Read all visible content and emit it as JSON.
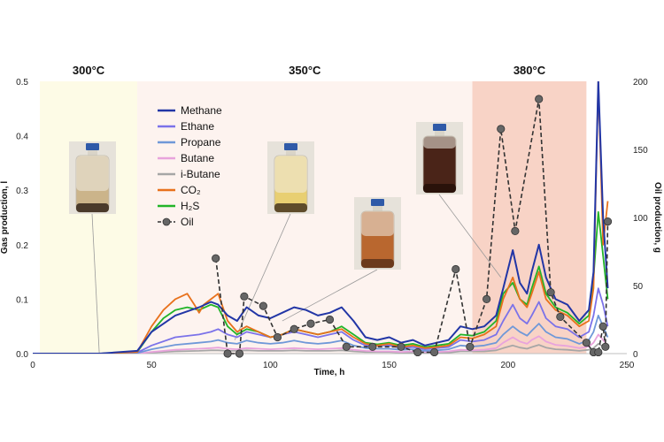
{
  "chart_data": {
    "type": "line",
    "xlabel": "Time, h",
    "ylabel": "Gas production, l",
    "y2label": "Oil production, g",
    "xlim": [
      0,
      250
    ],
    "ylim": [
      0,
      0.5
    ],
    "y2lim": [
      0,
      200
    ],
    "x_ticks": [
      "0",
      "50",
      "100",
      "150",
      "200",
      "250"
    ],
    "y_ticks": [
      "0.0",
      "0.1",
      "0.2",
      "0.3",
      "0.4",
      "0.5"
    ],
    "y2_ticks": [
      "0",
      "50",
      "100",
      "150",
      "200"
    ],
    "regions": [
      {
        "label": "300°C",
        "x": [
          3,
          44
        ],
        "color": "#fdfbe6"
      },
      {
        "label": "350°C",
        "x": [
          44,
          185
        ],
        "color": "#fdf3ef"
      },
      {
        "label": "380°C",
        "x": [
          185,
          233
        ],
        "color": "#f8d3c6"
      }
    ],
    "legend_position": "upper-left",
    "series": [
      {
        "name": "Methane",
        "color": "#2236a6",
        "x": [
          0,
          28,
          44,
          50,
          60,
          70,
          75,
          78,
          82,
          86,
          90,
          95,
          100,
          105,
          110,
          115,
          120,
          125,
          130,
          135,
          140,
          145,
          150,
          155,
          160,
          165,
          170,
          175,
          180,
          185,
          190,
          195,
          198,
          202,
          205,
          208,
          210,
          213,
          216,
          220,
          225,
          230,
          234,
          236,
          238,
          240,
          242
        ],
        "y": [
          0,
          0,
          0.005,
          0.04,
          0.07,
          0.085,
          0.095,
          0.09,
          0.07,
          0.06,
          0.085,
          0.07,
          0.065,
          0.075,
          0.085,
          0.08,
          0.07,
          0.075,
          0.085,
          0.06,
          0.03,
          0.025,
          0.03,
          0.02,
          0.025,
          0.015,
          0.02,
          0.025,
          0.05,
          0.045,
          0.05,
          0.07,
          0.12,
          0.19,
          0.13,
          0.11,
          0.15,
          0.2,
          0.14,
          0.1,
          0.09,
          0.06,
          0.08,
          0.15,
          0.5,
          0.25,
          0.12
        ]
      },
      {
        "name": "Ethane",
        "color": "#7b72e9",
        "x": [
          0,
          28,
          44,
          50,
          60,
          70,
          75,
          78,
          82,
          86,
          90,
          95,
          100,
          105,
          110,
          115,
          120,
          125,
          130,
          135,
          140,
          145,
          150,
          155,
          160,
          165,
          170,
          175,
          180,
          185,
          190,
          195,
          198,
          202,
          205,
          208,
          210,
          213,
          216,
          220,
          225,
          230,
          234,
          236,
          238,
          240,
          242
        ],
        "y": [
          0,
          0,
          0.002,
          0.015,
          0.03,
          0.035,
          0.04,
          0.045,
          0.035,
          0.03,
          0.04,
          0.035,
          0.03,
          0.035,
          0.04,
          0.035,
          0.03,
          0.035,
          0.04,
          0.025,
          0.015,
          0.015,
          0.015,
          0.01,
          0.012,
          0.008,
          0.01,
          0.012,
          0.025,
          0.022,
          0.025,
          0.035,
          0.06,
          0.09,
          0.065,
          0.055,
          0.07,
          0.095,
          0.065,
          0.05,
          0.045,
          0.03,
          0.04,
          0.07,
          0.12,
          0.09,
          0.05
        ]
      },
      {
        "name": "Propane",
        "color": "#6f98d8",
        "x": [
          0,
          28,
          44,
          50,
          60,
          70,
          75,
          78,
          82,
          86,
          90,
          95,
          100,
          105,
          110,
          115,
          120,
          125,
          130,
          135,
          140,
          145,
          150,
          155,
          160,
          165,
          170,
          175,
          180,
          185,
          190,
          195,
          198,
          202,
          205,
          208,
          210,
          213,
          216,
          220,
          225,
          230,
          234,
          236,
          238,
          240,
          242
        ],
        "y": [
          0,
          0,
          0.001,
          0.008,
          0.016,
          0.02,
          0.022,
          0.025,
          0.02,
          0.018,
          0.024,
          0.02,
          0.018,
          0.02,
          0.024,
          0.02,
          0.018,
          0.02,
          0.024,
          0.015,
          0.01,
          0.009,
          0.009,
          0.007,
          0.008,
          0.005,
          0.006,
          0.008,
          0.015,
          0.013,
          0.015,
          0.02,
          0.035,
          0.05,
          0.04,
          0.033,
          0.042,
          0.055,
          0.04,
          0.03,
          0.027,
          0.018,
          0.025,
          0.04,
          0.07,
          0.05,
          0.03
        ]
      },
      {
        "name": "Butane",
        "color": "#e8a3dc",
        "x": [
          0,
          28,
          44,
          50,
          60,
          70,
          75,
          78,
          82,
          86,
          90,
          95,
          100,
          105,
          110,
          115,
          120,
          125,
          130,
          135,
          140,
          145,
          150,
          155,
          160,
          165,
          170,
          175,
          180,
          185,
          190,
          195,
          198,
          202,
          205,
          208,
          210,
          213,
          216,
          220,
          225,
          230,
          234,
          236,
          238,
          240,
          242
        ],
        "y": [
          0,
          0,
          0,
          0.003,
          0.007,
          0.009,
          0.01,
          0.011,
          0.009,
          0.008,
          0.01,
          0.009,
          0.008,
          0.009,
          0.01,
          0.009,
          0.008,
          0.009,
          0.01,
          0.007,
          0.005,
          0.004,
          0.004,
          0.003,
          0.004,
          0.003,
          0.003,
          0.004,
          0.007,
          0.006,
          0.007,
          0.01,
          0.02,
          0.03,
          0.022,
          0.018,
          0.025,
          0.032,
          0.022,
          0.016,
          0.014,
          0.01,
          0.013,
          0.02,
          0.035,
          0.025,
          0.015
        ]
      },
      {
        "name": "i-Butane",
        "color": "#a6a6a6",
        "x": [
          0,
          28,
          44,
          50,
          60,
          70,
          75,
          78,
          82,
          86,
          90,
          95,
          100,
          105,
          110,
          115,
          120,
          125,
          130,
          135,
          140,
          145,
          150,
          155,
          160,
          165,
          170,
          175,
          180,
          185,
          190,
          195,
          198,
          202,
          205,
          208,
          210,
          213,
          216,
          220,
          225,
          230,
          234,
          236,
          238,
          240,
          242
        ],
        "y": [
          0,
          0,
          0,
          0.002,
          0.004,
          0.005,
          0.006,
          0.006,
          0.005,
          0.005,
          0.006,
          0.005,
          0.005,
          0.005,
          0.006,
          0.005,
          0.005,
          0.005,
          0.006,
          0.004,
          0.003,
          0.003,
          0.003,
          0.002,
          0.002,
          0.002,
          0.002,
          0.002,
          0.004,
          0.004,
          0.004,
          0.006,
          0.01,
          0.015,
          0.011,
          0.009,
          0.012,
          0.016,
          0.011,
          0.008,
          0.007,
          0.005,
          0.007,
          0.01,
          0.018,
          0.013,
          0.008
        ]
      },
      {
        "name": "CO₂",
        "color": "#e8711c",
        "x": [
          0,
          28,
          44,
          50,
          55,
          60,
          65,
          68,
          70,
          72,
          75,
          78,
          82,
          86,
          90,
          95,
          100,
          105,
          110,
          115,
          120,
          125,
          130,
          135,
          140,
          145,
          150,
          155,
          160,
          165,
          170,
          175,
          180,
          185,
          190,
          195,
          198,
          202,
          205,
          208,
          210,
          213,
          216,
          220,
          225,
          230,
          234,
          236,
          238,
          240,
          242
        ],
        "y": [
          0,
          0,
          0.003,
          0.05,
          0.08,
          0.1,
          0.11,
          0.09,
          0.075,
          0.09,
          0.1,
          0.11,
          0.06,
          0.04,
          0.05,
          0.04,
          0.03,
          0.035,
          0.045,
          0.04,
          0.035,
          0.04,
          0.045,
          0.03,
          0.018,
          0.015,
          0.018,
          0.012,
          0.015,
          0.01,
          0.012,
          0.015,
          0.03,
          0.028,
          0.035,
          0.05,
          0.1,
          0.14,
          0.1,
          0.085,
          0.11,
          0.15,
          0.1,
          0.08,
          0.07,
          0.05,
          0.06,
          0.12,
          0.5,
          0.2,
          0.28
        ]
      },
      {
        "name": "H₂S",
        "color": "#22b428",
        "x": [
          0,
          28,
          44,
          50,
          55,
          60,
          65,
          70,
          75,
          78,
          82,
          86,
          90,
          95,
          100,
          105,
          110,
          115,
          120,
          125,
          130,
          135,
          140,
          145,
          150,
          155,
          160,
          165,
          170,
          175,
          180,
          185,
          190,
          195,
          198,
          202,
          205,
          208,
          210,
          213,
          216,
          220,
          225,
          230,
          234,
          236,
          238,
          240,
          242
        ],
        "y": [
          0,
          0,
          0.003,
          0.04,
          0.065,
          0.08,
          0.085,
          0.08,
          0.09,
          0.085,
          0.05,
          0.035,
          0.045,
          0.04,
          0.03,
          0.035,
          0.045,
          0.04,
          0.035,
          0.04,
          0.05,
          0.035,
          0.02,
          0.017,
          0.02,
          0.015,
          0.018,
          0.012,
          0.015,
          0.018,
          0.035,
          0.033,
          0.04,
          0.06,
          0.11,
          0.13,
          0.1,
          0.09,
          0.12,
          0.16,
          0.11,
          0.085,
          0.075,
          0.055,
          0.07,
          0.14,
          0.26,
          0.18,
          0.1
        ]
      },
      {
        "name": "Oil",
        "color": "#595959",
        "axis": "y2",
        "dashed": true,
        "marker": "circle",
        "x": [
          77,
          82,
          87,
          89,
          97,
          103,
          110,
          117,
          125,
          132,
          143,
          155,
          162,
          169,
          178,
          184,
          191,
          197,
          203,
          213,
          218,
          222,
          233,
          236,
          238,
          240,
          241,
          242
        ],
        "y": [
          70,
          0,
          0,
          42,
          35,
          12,
          18,
          22,
          25,
          5,
          5,
          5,
          1,
          1,
          62,
          5,
          40,
          165,
          90,
          187,
          45,
          27,
          8,
          1,
          1,
          20,
          5,
          97
        ]
      }
    ]
  }
}
